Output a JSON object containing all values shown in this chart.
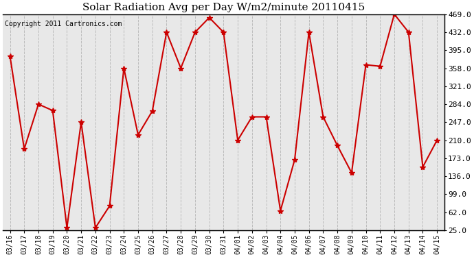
{
  "title": "Solar Radiation Avg per Day W/m2/minute 20110415",
  "copyright_text": "Copyright 2011 Cartronics.com",
  "labels": [
    "03/16",
    "03/17",
    "03/18",
    "03/19",
    "03/20",
    "03/21",
    "03/22",
    "03/23",
    "03/24",
    "03/25",
    "03/26",
    "03/27",
    "03/28",
    "03/29",
    "03/30",
    "03/31",
    "04/01",
    "04/02",
    "04/03",
    "04/04",
    "04/05",
    "04/06",
    "04/07",
    "04/08",
    "04/09",
    "04/10",
    "04/11",
    "04/12",
    "04/13",
    "04/14",
    "04/15"
  ],
  "values": [
    383,
    192,
    284,
    271,
    30,
    247,
    30,
    75,
    358,
    221,
    270,
    432,
    358,
    432,
    462,
    432,
    210,
    258,
    258,
    65,
    170,
    432,
    258,
    199,
    143,
    365,
    362,
    469,
    432,
    155,
    210
  ],
  "yticks": [
    25.0,
    62.0,
    99.0,
    136.0,
    173.0,
    210.0,
    247.0,
    284.0,
    321.0,
    358.0,
    395.0,
    432.0,
    469.0
  ],
  "line_color": "#cc0000",
  "marker_size": 4,
  "background_color": "#ffffff",
  "plot_bg_color": "#e8e8e8",
  "grid_color": "#bbbbbb",
  "title_fontsize": 11,
  "ylabel_right_fontsize": 8,
  "xlabel_fontsize": 7,
  "copyright_fontsize": 7,
  "ymin": 25.0,
  "ymax": 469.0
}
